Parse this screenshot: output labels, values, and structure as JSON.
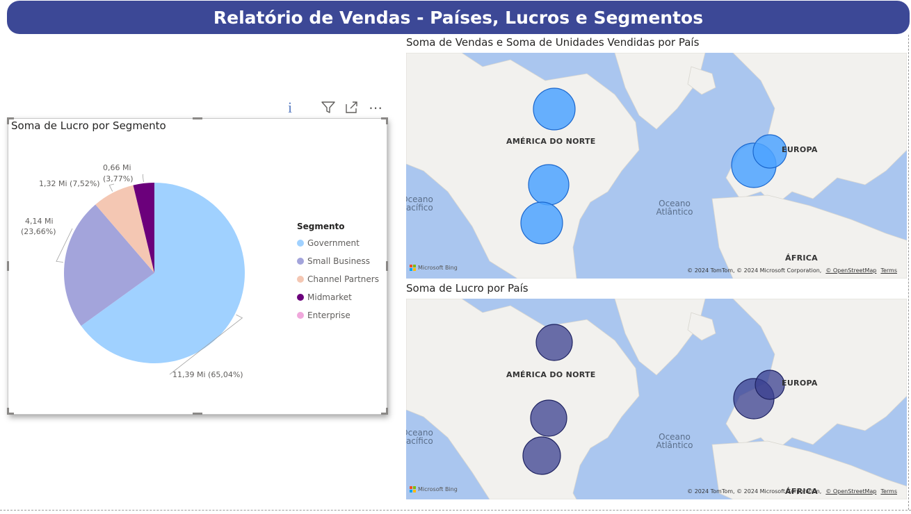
{
  "header": {
    "title": "Relatório de Vendas - Países, Lucros e Segmentos"
  },
  "toolbar": {
    "info_glyph": "i",
    "filter_icon": "filter-icon",
    "focus_icon": "focus-mode-icon",
    "more_label": "⋯"
  },
  "colors": {
    "banner": "#3c4896",
    "government": "#a0d1ff",
    "small_business": "#a3a4db",
    "channel_partners": "#f4c7b3",
    "midmarket": "#6b007b",
    "enterprise": "#f0a8dc",
    "bubble_sales": "#4da3ff",
    "bubble_profit": "#3a3f8f"
  },
  "pie_card": {
    "title": "Soma de Lucro por Segmento",
    "legend_title": "Segmento"
  },
  "chart_data": [
    {
      "type": "pie",
      "title": "Soma de Lucro por Segmento",
      "legend_title": "Segmento",
      "legend_position": "right",
      "categories": [
        "Government",
        "Small Business",
        "Channel Partners",
        "Midmarket",
        "Enterprise"
      ],
      "values": [
        11.39,
        4.14,
        1.32,
        0.66,
        0
      ],
      "unit": "Mi",
      "data_labels": [
        "11,39 Mi (65,04%)",
        "4,14 Mi (23,66%)",
        "1,32 Mi (7,52%)",
        "0,66 Mi (3,77%)",
        ""
      ],
      "percentages": [
        65.04,
        23.66,
        7.52,
        3.77,
        0
      ]
    }
  ],
  "map_sales": {
    "title": "Soma de Vendas e Soma de Unidades Vendidas por País",
    "labels": [
      "AMÉRICA DO NORTE",
      "EUROPA",
      "ÁFRICA"
    ],
    "ocean_atlantic": "Oceano Atlântico",
    "ocean_pacific": "Oceano Pacífico",
    "bing": "Microsoft Bing",
    "attribution": "© 2024 TomTom, © 2024 Microsoft Corporation,",
    "osm": "© OpenStreetMap",
    "terms": "Terms"
  },
  "map_profit": {
    "title": "Soma de Lucro por País",
    "labels": [
      "AMÉRICA DO NORTE",
      "EUROPA",
      "ÁFRICA"
    ],
    "ocean_atlantic": "Oceano Atlântico",
    "ocean_pacific": "Oceano Pacífico",
    "bing": "Microsoft Bing",
    "attribution": "© 2024 TomTom, © 2024 Microsoft Corporation,",
    "osm": "© OpenStreetMap",
    "terms": "Terms"
  }
}
